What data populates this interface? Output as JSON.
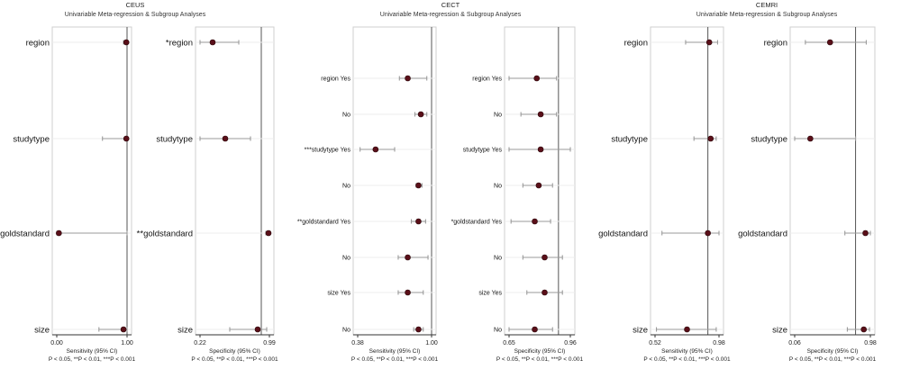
{
  "chart_data": [
    {
      "type": "forest",
      "group": "CEUS",
      "title": "CEUS",
      "subtitle": "Univariable Meta-regression & Subgroup Analyses",
      "panels": [
        {
          "xlabel": "Sensitivity (95% CI)",
          "footnote": "P < 0.05, **P < 0.01, ***P < 0.001",
          "xlim": [
            0.0,
            1.0
          ],
          "ticks": [
            "0.00",
            "1.00"
          ],
          "ref": 1.0,
          "rows": [
            {
              "label": "region",
              "est": 0.99,
              "lo": 0.95,
              "hi": 1.0
            },
            {
              "label": "studytype",
              "est": 0.99,
              "lo": 0.65,
              "hi": 1.0
            },
            {
              "label": "goldstandard",
              "est": 0.03,
              "lo": 0.0,
              "hi": 1.0
            },
            {
              "label": "size",
              "est": 0.95,
              "lo": 0.6,
              "hi": 1.0
            }
          ]
        },
        {
          "xlabel": "Specificity (95% CI)",
          "footnote": "P < 0.05, **P < 0.01, ***P < 0.001",
          "xlim": [
            0.22,
            0.99
          ],
          "ticks": [
            "0.22",
            "0.99"
          ],
          "ref": 0.9,
          "rows": [
            {
              "label": "*region",
              "est": 0.36,
              "lo": 0.22,
              "hi": 0.65
            },
            {
              "label": "studytype",
              "est": 0.5,
              "lo": 0.22,
              "hi": 0.78
            },
            {
              "label": "**goldstandard",
              "est": 0.98,
              "lo": 0.95,
              "hi": 0.99
            },
            {
              "label": "size",
              "est": 0.86,
              "lo": 0.55,
              "hi": 0.96
            }
          ]
        }
      ]
    },
    {
      "type": "forest",
      "group": "CECT",
      "title": "CECT",
      "subtitle": "Univariable Meta-regression & Subgroup Analyses",
      "panels": [
        {
          "xlabel": "Sensitivity (95% CI)",
          "footnote": "P < 0.05, **P < 0.01, ***P < 0.001",
          "xlim": [
            0.38,
            1.0
          ],
          "ticks": [
            "0.38",
            "1.00"
          ],
          "ref": 1.0,
          "rows": [
            {
              "label": "region Yes",
              "est": 0.8,
              "lo": 0.73,
              "hi": 0.96
            },
            {
              "label": "No",
              "est": 0.91,
              "lo": 0.86,
              "hi": 0.96
            },
            {
              "label": "***studytype Yes",
              "est": 0.53,
              "lo": 0.4,
              "hi": 0.69
            },
            {
              "label": "No",
              "est": 0.89,
              "lo": 0.87,
              "hi": 0.92
            },
            {
              "label": "**goldstandard Yes",
              "est": 0.89,
              "lo": 0.83,
              "hi": 0.95
            },
            {
              "label": "No",
              "est": 0.8,
              "lo": 0.72,
              "hi": 0.97
            },
            {
              "label": "size Yes",
              "est": 0.8,
              "lo": 0.72,
              "hi": 0.93
            },
            {
              "label": "No",
              "est": 0.89,
              "lo": 0.85,
              "hi": 0.93
            }
          ]
        },
        {
          "xlabel": "Specificity (95% CI)",
          "footnote": "P < 0.05, **P < 0.01, ***P < 0.001",
          "xlim": [
            0.65,
            0.96
          ],
          "ticks": [
            "0.65",
            "0.96"
          ],
          "ref": 0.9,
          "rows": [
            {
              "label": "region Yes",
              "est": 0.79,
              "lo": 0.65,
              "hi": 0.89
            },
            {
              "label": "No",
              "est": 0.81,
              "lo": 0.71,
              "hi": 0.89
            },
            {
              "label": "studytype Yes",
              "est": 0.81,
              "lo": 0.65,
              "hi": 0.96
            },
            {
              "label": "No",
              "est": 0.8,
              "lo": 0.72,
              "hi": 0.87
            },
            {
              "label": "*goldstandard Yes",
              "est": 0.78,
              "lo": 0.66,
              "hi": 0.86
            },
            {
              "label": "No",
              "est": 0.83,
              "lo": 0.72,
              "hi": 0.92
            },
            {
              "label": "size Yes",
              "est": 0.83,
              "lo": 0.74,
              "hi": 0.92
            },
            {
              "label": "No",
              "est": 0.78,
              "lo": 0.65,
              "hi": 0.87
            }
          ]
        }
      ]
    },
    {
      "type": "forest",
      "group": "CEMRI",
      "title": "CEMRI",
      "subtitle": "Univariable Meta-regression & Subgroup Analyses",
      "panels": [
        {
          "xlabel": "Sensitivity (95% CI)",
          "footnote": "P < 0.05, **P < 0.01, ***P < 0.001",
          "xlim": [
            0.52,
            0.98
          ],
          "ticks": [
            "0.52",
            "0.98"
          ],
          "ref": 0.9,
          "rows": [
            {
              "label": "region",
              "est": 0.91,
              "lo": 0.74,
              "hi": 0.97
            },
            {
              "label": "studytype",
              "est": 0.92,
              "lo": 0.8,
              "hi": 0.96
            },
            {
              "label": "goldstandard",
              "est": 0.9,
              "lo": 0.57,
              "hi": 0.98
            },
            {
              "label": "size",
              "est": 0.75,
              "lo": 0.53,
              "hi": 0.96
            }
          ]
        },
        {
          "xlabel": "Specificity (95% CI)",
          "footnote": "P < 0.05, **P < 0.01, ***P < 0.001",
          "xlim": [
            0.06,
            0.98
          ],
          "ticks": [
            "0.06",
            "0.98"
          ],
          "ref": 0.8,
          "rows": [
            {
              "label": "region",
              "est": 0.49,
              "lo": 0.19,
              "hi": 0.93
            },
            {
              "label": "studytype",
              "est": 0.25,
              "lo": 0.06,
              "hi": 0.8
            },
            {
              "label": "goldstandard",
              "est": 0.92,
              "lo": 0.67,
              "hi": 0.98
            },
            {
              "label": "size",
              "est": 0.9,
              "lo": 0.7,
              "hi": 0.97
            }
          ]
        }
      ]
    }
  ]
}
